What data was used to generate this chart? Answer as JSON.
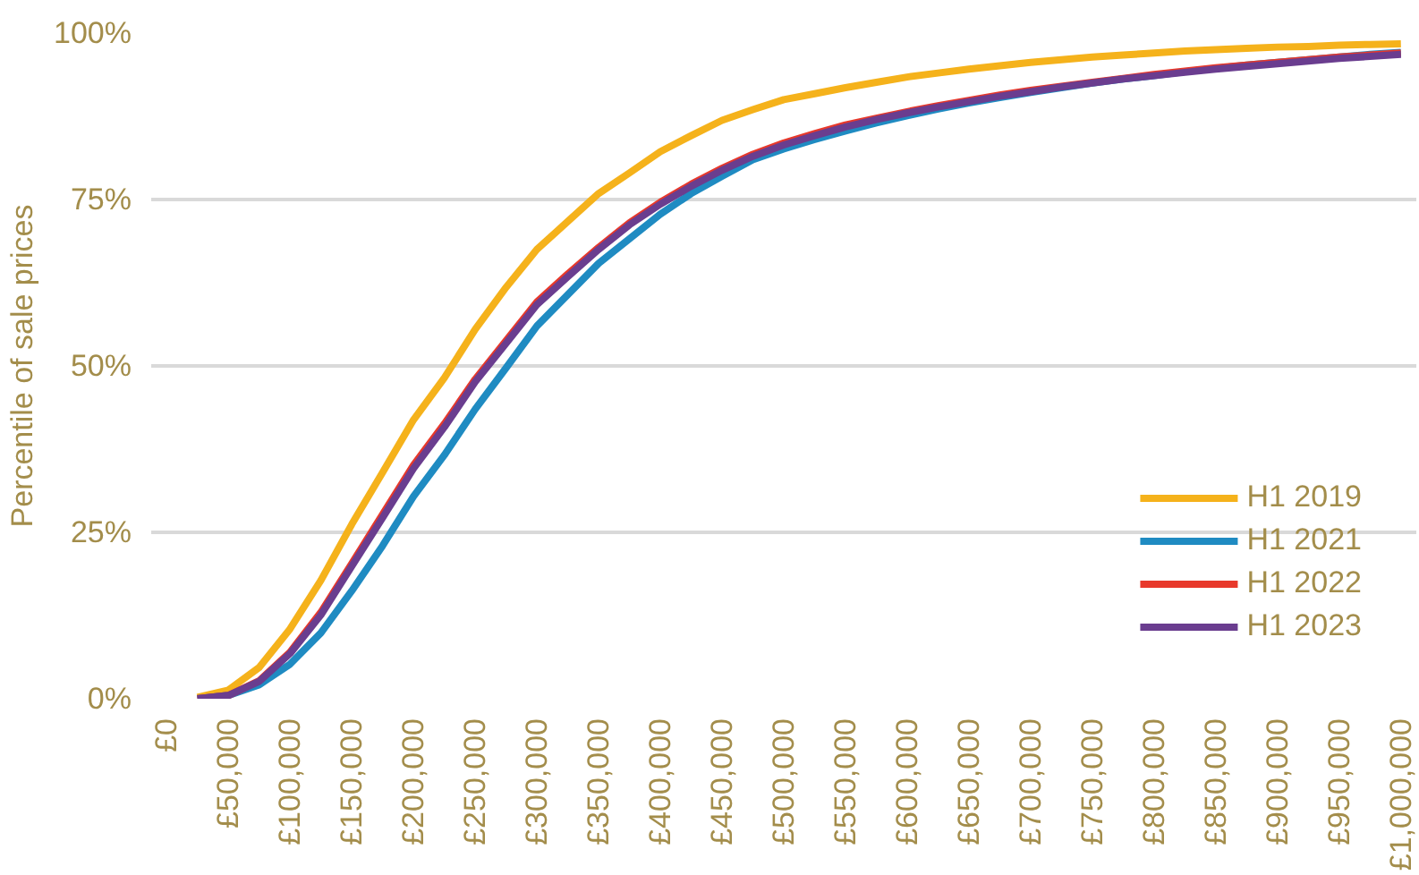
{
  "chart_data": {
    "type": "line",
    "ylabel": "Percentile of sale prices",
    "x": [
      25000,
      50000,
      75000,
      100000,
      125000,
      150000,
      175000,
      200000,
      225000,
      250000,
      275000,
      300000,
      325000,
      350000,
      375000,
      400000,
      425000,
      450000,
      475000,
      500000,
      525000,
      550000,
      575000,
      600000,
      625000,
      650000,
      675000,
      700000,
      725000,
      750000,
      775000,
      800000,
      825000,
      850000,
      875000,
      900000,
      925000,
      950000,
      975000,
      1000000
    ],
    "series": [
      {
        "name": "H1 2019",
        "color": "#f5b21b",
        "values": [
          0.2,
          1.3,
          4.7,
          10.5,
          17.8,
          26.2,
          34.0,
          41.9,
          48.2,
          55.5,
          61.8,
          67.5,
          71.7,
          75.9,
          79.0,
          82.2,
          84.6,
          86.9,
          88.5,
          90.0,
          90.9,
          91.8,
          92.6,
          93.4,
          94.0,
          94.6,
          95.1,
          95.6,
          96.0,
          96.4,
          96.7,
          97.0,
          97.3,
          97.5,
          97.7,
          97.9,
          98.0,
          98.2,
          98.3,
          98.4
        ]
      },
      {
        "name": "H1 2021",
        "color": "#1f8bc2",
        "values": [
          0,
          0.5,
          2.1,
          5.2,
          9.9,
          16.2,
          23.0,
          30.4,
          36.6,
          43.5,
          49.7,
          56.0,
          60.7,
          65.4,
          69.1,
          72.8,
          75.9,
          78.5,
          81.0,
          82.6,
          84.0,
          85.3,
          86.5,
          87.6,
          88.6,
          89.5,
          90.3,
          91.1,
          91.8,
          92.5,
          93.1,
          93.6,
          94.2,
          94.7,
          95.2,
          95.6,
          96.0,
          96.4,
          96.8,
          97.1
        ]
      },
      {
        "name": "H1 2022",
        "color": "#e8392b",
        "values": [
          0,
          0.5,
          2.7,
          7.0,
          13.0,
          20.3,
          27.7,
          35.1,
          41.3,
          48.0,
          53.8,
          59.6,
          63.8,
          67.8,
          71.5,
          74.6,
          77.3,
          79.7,
          81.8,
          83.5,
          84.9,
          86.2,
          87.2,
          88.2,
          89.1,
          89.9,
          90.7,
          91.4,
          92.0,
          92.6,
          93.2,
          93.8,
          94.3,
          94.8,
          95.2,
          95.6,
          96.0,
          96.4,
          96.7,
          97.0
        ]
      },
      {
        "name": "H1 2023",
        "color": "#6a3d8f",
        "values": [
          0,
          0.5,
          2.6,
          6.8,
          12.6,
          19.9,
          27.2,
          34.6,
          40.8,
          47.6,
          53.4,
          59.2,
          63.4,
          67.5,
          71.2,
          74.3,
          77.0,
          79.4,
          81.5,
          83.2,
          84.6,
          85.9,
          87.0,
          88.0,
          88.9,
          89.7,
          90.5,
          91.2,
          91.9,
          92.5,
          93.1,
          93.6,
          94.1,
          94.6,
          95.0,
          95.4,
          95.8,
          96.2,
          96.5,
          96.8
        ]
      }
    ],
    "xlim": [
      -12500,
      1012500
    ],
    "xticks": [
      {
        "value": 0,
        "label": "£0"
      },
      {
        "value": 50000,
        "label": "£50,000"
      },
      {
        "value": 100000,
        "label": "£100,000"
      },
      {
        "value": 150000,
        "label": "£150,000"
      },
      {
        "value": 200000,
        "label": "£200,000"
      },
      {
        "value": 250000,
        "label": "£250,000"
      },
      {
        "value": 300000,
        "label": "£300,000"
      },
      {
        "value": 350000,
        "label": "£350,000"
      },
      {
        "value": 400000,
        "label": "£400,000"
      },
      {
        "value": 450000,
        "label": "£450,000"
      },
      {
        "value": 500000,
        "label": "£500,000"
      },
      {
        "value": 550000,
        "label": "£550,000"
      },
      {
        "value": 600000,
        "label": "£600,000"
      },
      {
        "value": 650000,
        "label": "£650,000"
      },
      {
        "value": 700000,
        "label": "£700,000"
      },
      {
        "value": 750000,
        "label": "£750,000"
      },
      {
        "value": 800000,
        "label": "£800,000"
      },
      {
        "value": 850000,
        "label": "£850,000"
      },
      {
        "value": 900000,
        "label": "£900,000"
      },
      {
        "value": 950000,
        "label": "£950,000"
      },
      {
        "value": 1000000,
        "label": "£1,000,000"
      }
    ],
    "ylim": [
      0,
      100
    ],
    "yticks": [
      {
        "value": 0,
        "label": "0%"
      },
      {
        "value": 25,
        "label": "25%"
      },
      {
        "value": 50,
        "label": "50%"
      },
      {
        "value": 75,
        "label": "75%"
      },
      {
        "value": 100,
        "label": "100%"
      }
    ],
    "grid": "y",
    "legend": "bottom right",
    "marker": "none",
    "line_style": "solid"
  }
}
